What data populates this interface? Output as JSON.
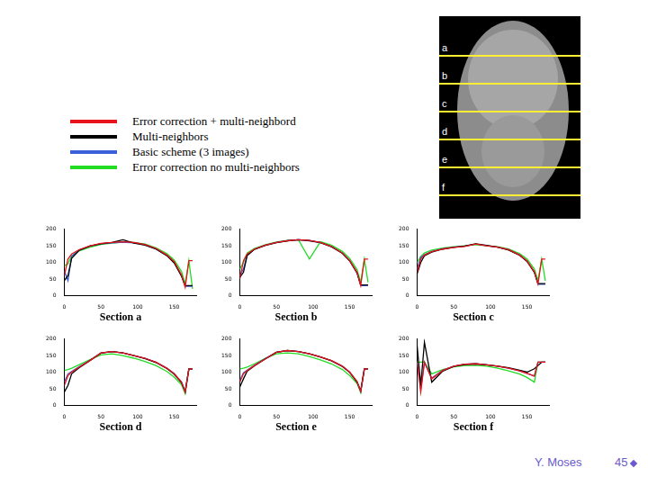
{
  "slide": {
    "image_labels": [
      "a",
      "b",
      "c",
      "d",
      "e",
      "f"
    ],
    "footer": {
      "author": "Y. Moses",
      "page": "45"
    }
  },
  "chart_data": [
    {
      "type": "line",
      "title": "Section a",
      "x": [
        0,
        5,
        10,
        20,
        35,
        50,
        65,
        80,
        95,
        110,
        125,
        140,
        150,
        160,
        165,
        170,
        175
      ],
      "xlim": [
        0,
        180
      ],
      "xticks": [
        0,
        50,
        100,
        150
      ],
      "ylim": [
        0,
        200
      ],
      "yticks": [
        0,
        50,
        100,
        150,
        200
      ],
      "series": [
        {
          "name": "Error correction + multi-neighbord",
          "color": "#e8141c",
          "values": [
            60,
            110,
            125,
            138,
            150,
            157,
            160,
            162,
            160,
            154,
            142,
            122,
            102,
            62,
            25,
            105,
            105
          ]
        },
        {
          "name": "Multi-neighbors",
          "color": "#000000",
          "values": [
            45,
            60,
            112,
            136,
            149,
            156,
            160,
            168,
            158,
            152,
            140,
            120,
            98,
            58,
            30,
            30,
            30
          ]
        },
        {
          "name": "Basic scheme (3 images)",
          "color": "#3a5fd9",
          "values": [
            75,
            45,
            118,
            137,
            149,
            156,
            159,
            161,
            159,
            153,
            141,
            121,
            100,
            60,
            28,
            28,
            28
          ]
        },
        {
          "name": "Error correction no multi-neighbors",
          "color": "#22dd22",
          "values": [
            90,
            95,
            120,
            134,
            146,
            154,
            158,
            161,
            160,
            155,
            144,
            126,
            107,
            72,
            35,
            105,
            20
          ]
        }
      ]
    },
    {
      "type": "line",
      "title": "Section b",
      "x": [
        0,
        5,
        10,
        20,
        35,
        50,
        65,
        80,
        95,
        110,
        125,
        140,
        150,
        160,
        165,
        170,
        175
      ],
      "xlim": [
        0,
        180
      ],
      "xticks": [
        0,
        50,
        100,
        150
      ],
      "ylim": [
        0,
        200
      ],
      "yticks": [
        0,
        50,
        100,
        150,
        200
      ],
      "series": [
        {
          "name": "Error correction + multi-neighbord",
          "color": "#e8141c",
          "values": [
            50,
            105,
            125,
            140,
            152,
            160,
            165,
            168,
            166,
            160,
            148,
            128,
            105,
            70,
            30,
            110,
            110
          ]
        },
        {
          "name": "Multi-neighbors",
          "color": "#000000",
          "values": [
            55,
            70,
            120,
            139,
            151,
            159,
            165,
            168,
            165,
            159,
            147,
            127,
            104,
            68,
            32,
            32,
            32
          ]
        },
        {
          "name": "Basic scheme (3 images)",
          "color": "#3a5fd9",
          "values": [
            60,
            80,
            122,
            140,
            152,
            160,
            165,
            168,
            166,
            160,
            148,
            128,
            105,
            69,
            30,
            30,
            30
          ]
        },
        {
          "name": "Error correction no multi-neighbors",
          "color": "#22dd22",
          "values": [
            80,
            100,
            128,
            142,
            153,
            161,
            166,
            168,
            110,
            162,
            152,
            133,
            112,
            78,
            40,
            110,
            40
          ]
        }
      ]
    },
    {
      "type": "line",
      "title": "Section c",
      "x": [
        0,
        5,
        10,
        20,
        35,
        50,
        65,
        80,
        95,
        110,
        125,
        140,
        150,
        160,
        165,
        170,
        175
      ],
      "xlim": [
        0,
        180
      ],
      "xticks": [
        0,
        50,
        100,
        150
      ],
      "ylim": [
        0,
        200
      ],
      "yticks": [
        0,
        50,
        100,
        150,
        200
      ],
      "series": [
        {
          "name": "Error correction + multi-neighbord",
          "color": "#e8141c",
          "values": [
            70,
            110,
            122,
            132,
            140,
            145,
            148,
            155,
            150,
            146,
            138,
            122,
            104,
            72,
            35,
            110,
            110
          ]
        },
        {
          "name": "Multi-neighbors",
          "color": "#000000",
          "values": [
            65,
            100,
            120,
            131,
            140,
            145,
            149,
            156,
            151,
            146,
            137,
            121,
            103,
            70,
            36,
            36,
            36
          ]
        },
        {
          "name": "Basic scheme (3 images)",
          "color": "#3a5fd9",
          "values": [
            80,
            115,
            123,
            133,
            141,
            146,
            149,
            155,
            150,
            146,
            138,
            122,
            104,
            71,
            34,
            34,
            34
          ]
        },
        {
          "name": "Error correction no multi-neighbors",
          "color": "#22dd22",
          "values": [
            100,
            118,
            128,
            137,
            143,
            147,
            150,
            153,
            150,
            147,
            140,
            126,
            110,
            80,
            45,
            110,
            45
          ]
        }
      ]
    },
    {
      "type": "line",
      "title": "Section d",
      "x": [
        0,
        5,
        10,
        20,
        35,
        50,
        65,
        80,
        95,
        110,
        125,
        140,
        150,
        160,
        165,
        170,
        175
      ],
      "xlim": [
        0,
        180
      ],
      "xticks": [
        0,
        50,
        100,
        150
      ],
      "ylim": [
        0,
        200
      ],
      "yticks": [
        0,
        50,
        100,
        150,
        200
      ],
      "series": [
        {
          "name": "Error correction + multi-neighbord",
          "color": "#e8141c",
          "values": [
            60,
            90,
            100,
            115,
            135,
            158,
            162,
            158,
            150,
            142,
            130,
            112,
            95,
            70,
            40,
            110,
            110
          ]
        },
        {
          "name": "Multi-neighbors",
          "color": "#000000",
          "values": [
            40,
            60,
            95,
            113,
            135,
            157,
            162,
            158,
            150,
            141,
            129,
            111,
            94,
            68,
            42,
            110,
            110
          ]
        },
        {
          "name": "Basic scheme (3 images)",
          "color": "#3a5fd9",
          "values": [
            70,
            95,
            102,
            116,
            136,
            158,
            162,
            158,
            150,
            142,
            130,
            112,
            95,
            70,
            40,
            110,
            110
          ]
        },
        {
          "name": "Error correction no multi-neighbors",
          "color": "#22dd22",
          "values": [
            105,
            108,
            112,
            122,
            138,
            152,
            155,
            150,
            142,
            132,
            120,
            102,
            85,
            62,
            35,
            110,
            110
          ]
        }
      ]
    },
    {
      "type": "line",
      "title": "Section e",
      "x": [
        0,
        5,
        10,
        20,
        35,
        50,
        65,
        80,
        95,
        110,
        125,
        140,
        150,
        160,
        165,
        170,
        175
      ],
      "xlim": [
        0,
        180
      ],
      "xticks": [
        0,
        50,
        100,
        150
      ],
      "ylim": [
        0,
        200
      ],
      "yticks": [
        0,
        50,
        100,
        150,
        200
      ],
      "series": [
        {
          "name": "Error correction + multi-neighbord",
          "color": "#e8141c",
          "values": [
            70,
            95,
            105,
            120,
            140,
            160,
            165,
            162,
            155,
            146,
            135,
            118,
            100,
            72,
            42,
            110,
            110
          ]
        },
        {
          "name": "Multi-neighbors",
          "color": "#000000",
          "values": [
            55,
            80,
            103,
            119,
            140,
            160,
            165,
            162,
            155,
            146,
            134,
            117,
            99,
            70,
            44,
            110,
            110
          ]
        },
        {
          "name": "Basic scheme (3 images)",
          "color": "#3a5fd9",
          "values": [
            75,
            98,
            106,
            121,
            141,
            160,
            165,
            162,
            155,
            146,
            135,
            118,
            100,
            71,
            42,
            110,
            110
          ]
        },
        {
          "name": "Error correction no multi-neighbors",
          "color": "#22dd22",
          "values": [
            110,
            112,
            115,
            125,
            142,
            155,
            158,
            155,
            147,
            137,
            125,
            108,
            90,
            66,
            38,
            110,
            110
          ]
        }
      ]
    },
    {
      "type": "line",
      "title": "Section f",
      "x": [
        0,
        5,
        10,
        20,
        35,
        50,
        65,
        80,
        95,
        110,
        125,
        140,
        150,
        160,
        165,
        170,
        175
      ],
      "xlim": [
        0,
        180
      ],
      "xticks": [
        0,
        50,
        100,
        150
      ],
      "ylim": [
        0,
        200
      ],
      "yticks": [
        0,
        50,
        100,
        150,
        200
      ],
      "series": [
        {
          "name": "Error correction + multi-neighbord",
          "color": "#e8141c",
          "values": [
            130,
            40,
            130,
            80,
            105,
            118,
            124,
            125,
            122,
            118,
            112,
            104,
            96,
            88,
            130,
            130,
            130
          ]
        },
        {
          "name": "Multi-neighbors",
          "color": "#000000",
          "values": [
            180,
            60,
            190,
            70,
            103,
            117,
            123,
            125,
            122,
            118,
            113,
            106,
            100,
            110,
            120,
            130,
            130
          ]
        },
        {
          "name": "Basic scheme (3 images)",
          "color": "#3a5fd9",
          "values": [
            130,
            50,
            130,
            82,
            106,
            118,
            124,
            125,
            122,
            118,
            112,
            104,
            96,
            88,
            130,
            130,
            130
          ]
        },
        {
          "name": "Error correction no multi-neighbors",
          "color": "#22dd22",
          "values": [
            130,
            130,
            130,
            95,
            108,
            116,
            120,
            121,
            118,
            112,
            104,
            94,
            84,
            70,
            130,
            130,
            130
          ]
        }
      ]
    }
  ]
}
